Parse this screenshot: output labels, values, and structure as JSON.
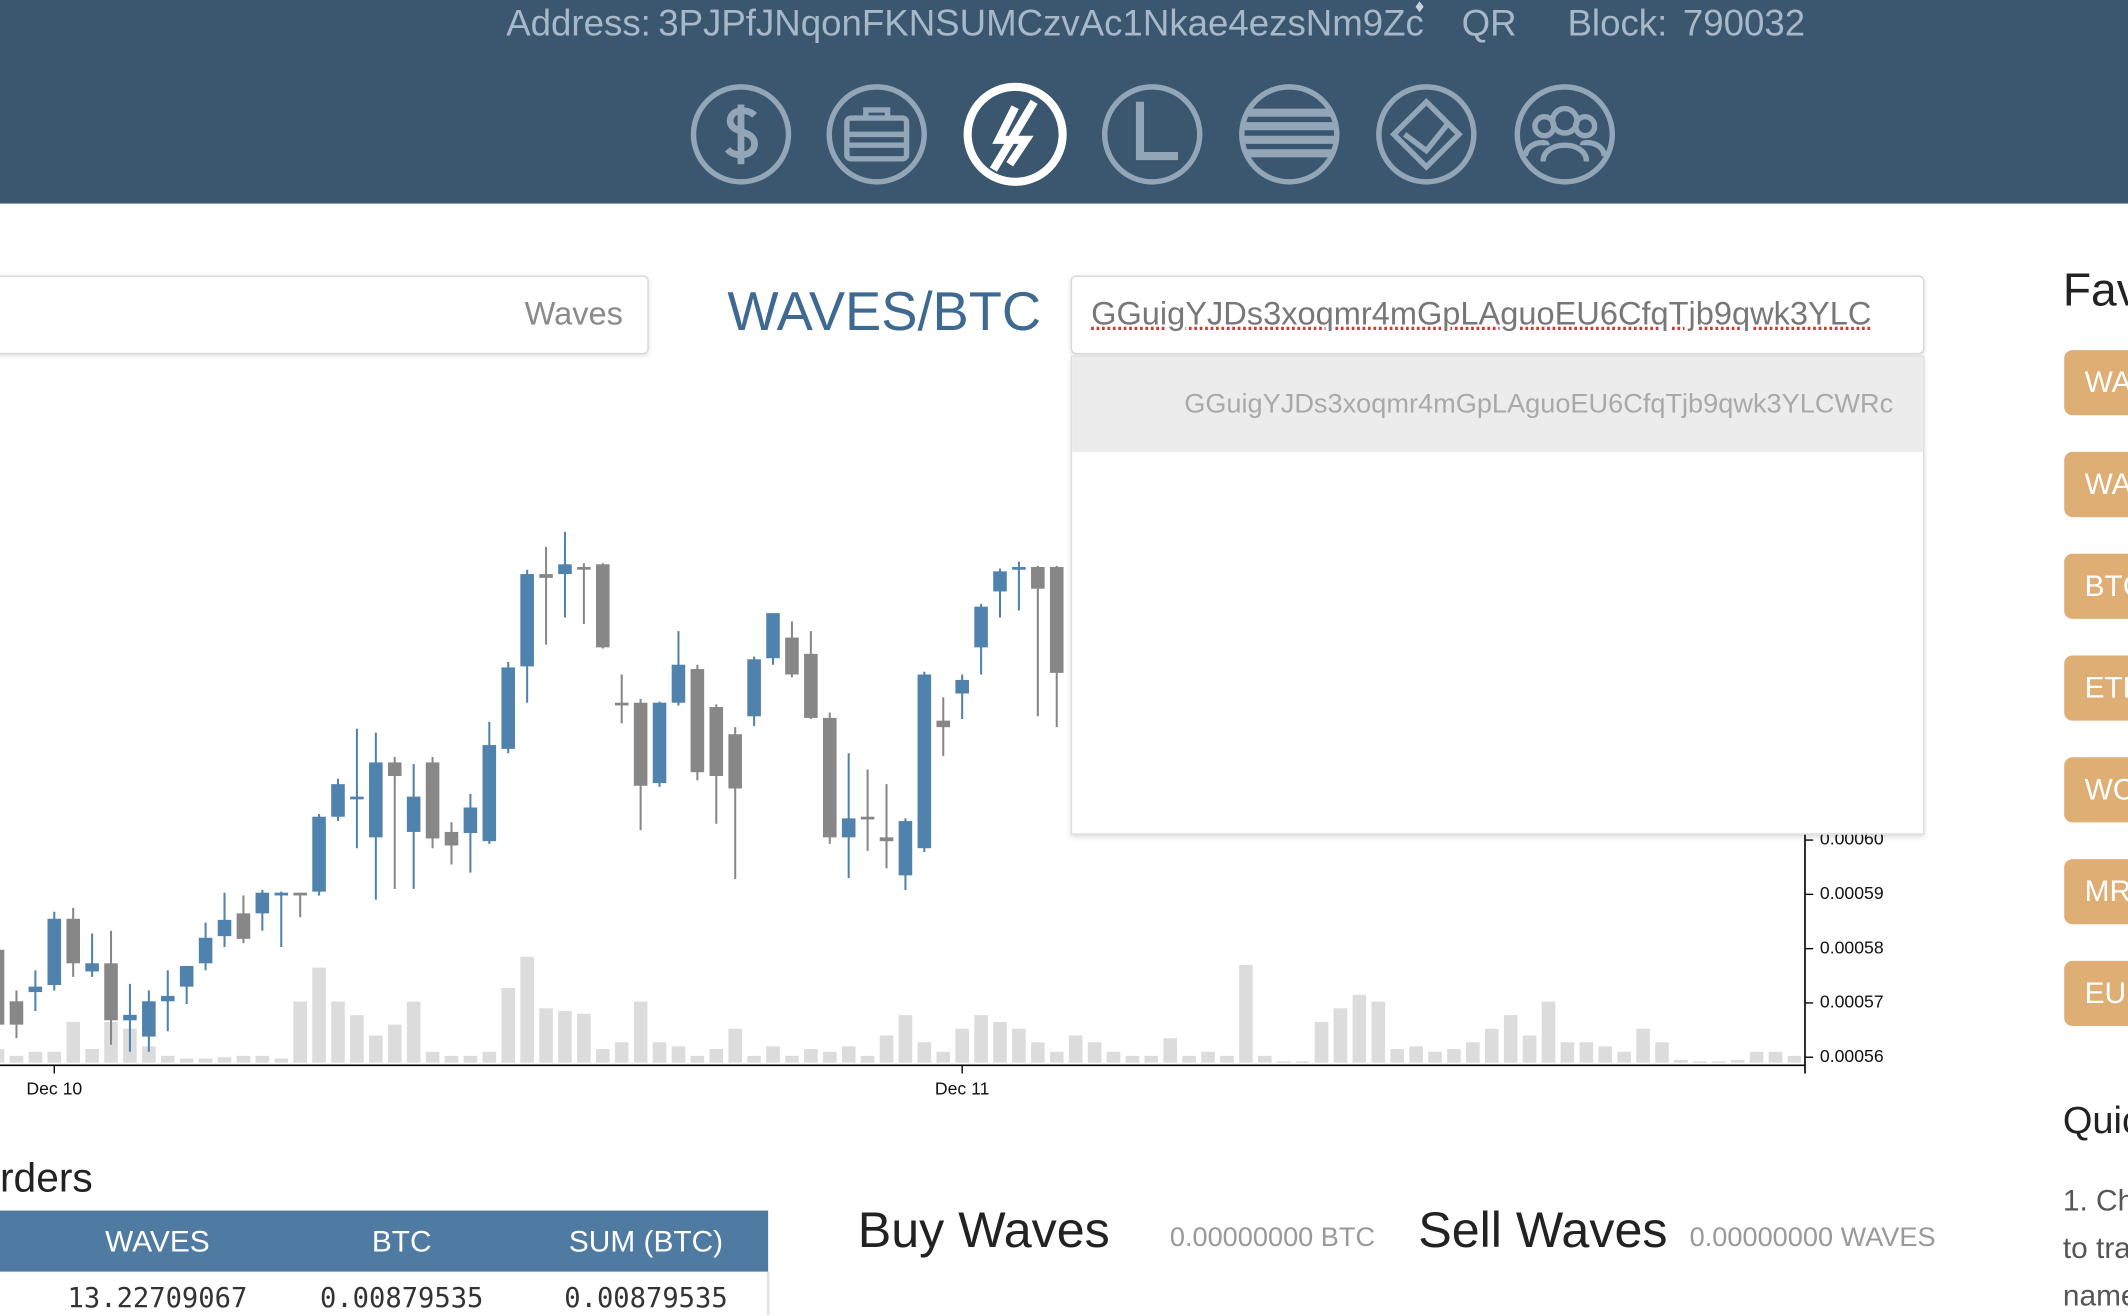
{
  "header": {
    "address_label": "Address:",
    "address": "3PJPfJNqonFKNSUMCzvAc1Nkae4ezsNm9Zc",
    "qr": "QR",
    "block_label": "Block:",
    "block": "790032"
  },
  "pair": {
    "amount_asset": "Waves",
    "title": "WAVES/BTC",
    "price_asset_input": "GGuigYJDs3xoqmr4mGpLAguoEU6CfqTjb9qwk3YLC",
    "suggestion": "GGuigYJDs3xoqmr4mGpLAguoEU6CfqTjb9qwk3YLCWRc"
  },
  "chart_data": {
    "type": "candlestick",
    "xlim": [
      -1.435,
      46.28
    ],
    "xticks": [
      {
        "value": 0,
        "label": "Dec 10"
      },
      {
        "value": 24,
        "label": "Dec 11"
      }
    ],
    "ylim": [
      0.0005585,
      0.000685
    ],
    "yticks": [
      0.00056,
      0.00057,
      0.00058,
      0.00059,
      {
        "value": 0.0006,
        "label": "0.00060"
      }
    ],
    "up_color": "#4f82ad",
    "down_color": "#878787",
    "candles": {
      "x": [
        -1.5,
        -1,
        -0.5,
        0,
        0.5,
        1,
        1.5,
        2,
        2.5,
        3,
        3.5,
        4,
        4.5,
        5,
        5.5,
        6,
        6.5,
        7,
        7.5,
        8,
        8.5,
        9,
        9.5,
        10,
        10.5,
        11,
        11.5,
        12,
        12.5,
        13,
        13.5,
        14,
        14.5,
        15,
        15.5,
        16,
        16.5,
        17,
        17.5,
        18,
        18.5,
        19,
        19.5,
        20,
        20.5,
        21,
        21.5,
        22,
        22.5,
        23,
        23.5,
        24,
        24.5,
        25,
        25.5,
        26,
        26.5
      ],
      "open": [
        0.0005798,
        0.0005703,
        0.000572,
        0.0005733,
        0.0005855,
        0.0005758,
        0.0005773,
        0.0005668,
        0.0005638,
        0.0005703,
        0.000573,
        0.0005773,
        0.0005823,
        0.0005865,
        0.0005865,
        0.0005898,
        0.0005903,
        0.0005905,
        0.0006043,
        0.0006075,
        0.0006005,
        0.0006143,
        0.0006015,
        0.0006143,
        0.0006015,
        0.0006013,
        0.0005998,
        0.0006168,
        0.000632,
        0.000649,
        0.000649,
        0.0006503,
        0.0006508,
        0.0006253,
        0.0006253,
        0.0006105,
        0.0006253,
        0.0006315,
        0.0006245,
        0.0006195,
        0.0006228,
        0.0006335,
        0.0006373,
        0.0006343,
        0.0006225,
        0.0006005,
        0.0006043,
        0.0006005,
        0.0005935,
        0.0005985,
        0.000622,
        0.000627,
        0.0006355,
        0.0006458,
        0.0006498,
        0.0006503,
        0.0006503
      ],
      "high": [
        0.0005798,
        0.0005723,
        0.000576,
        0.0005868,
        0.0005875,
        0.0005828,
        0.0005833,
        0.0005735,
        0.0005723,
        0.000576,
        0.0005768,
        0.0005848,
        0.0005903,
        0.0005898,
        0.0005908,
        0.0005905,
        0.0005903,
        0.0006048,
        0.0006113,
        0.0006205,
        0.0006198,
        0.0006153,
        0.000614,
        0.0006153,
        0.0006033,
        0.0006085,
        0.0006218,
        0.0006328,
        0.0006498,
        0.000654,
        0.0006568,
        0.000651,
        0.000651,
        0.0006305,
        0.000626,
        0.0006255,
        0.0006385,
        0.0006323,
        0.000625,
        0.0006208,
        0.0006338,
        0.0006418,
        0.0006403,
        0.0006385,
        0.0006235,
        0.000616,
        0.000613,
        0.0006103,
        0.000604,
        0.000631,
        0.0006263,
        0.0006305,
        0.0006435,
        0.00065,
        0.0006513,
        0.0006505,
        0.0006505
      ],
      "low": [
        0.0005623,
        0.0005635,
        0.0005685,
        0.0005723,
        0.0005748,
        0.0005748,
        0.0005623,
        0.000561,
        0.000561,
        0.0005648,
        0.0005698,
        0.000576,
        0.0005803,
        0.000581,
        0.0005833,
        0.0005803,
        0.0005858,
        0.0005898,
        0.0006035,
        0.0005985,
        0.000589,
        0.000591,
        0.000591,
        0.0005985,
        0.0005955,
        0.000594,
        0.0005993,
        0.000616,
        0.0006253,
        0.000636,
        0.000641,
        0.0006398,
        0.0006353,
        0.0006215,
        0.0006018,
        0.0006098,
        0.0006248,
        0.000611,
        0.000603,
        0.0005928,
        0.000621,
        0.0006323,
        0.00063,
        0.0006223,
        0.0005993,
        0.000593,
        0.000598,
        0.0005948,
        0.0005908,
        0.0005978,
        0.0006155,
        0.0006223,
        0.0006305,
        0.000641,
        0.0006423,
        0.0006228,
        0.0006208
      ],
      "close": [
        0.000566,
        0.000566,
        0.000573,
        0.0005855,
        0.0005773,
        0.0005773,
        0.0005668,
        0.0005678,
        0.0005703,
        0.0005713,
        0.0005768,
        0.000582,
        0.0005853,
        0.0005818,
        0.0005903,
        0.0005903,
        0.0005898,
        0.0006043,
        0.0006103,
        0.000608,
        0.0006143,
        0.0006118,
        0.000608,
        0.0006003,
        0.000599,
        0.000606,
        0.0006175,
        0.0006318,
        0.000649,
        0.0006483,
        0.0006508,
        0.0006498,
        0.0006355,
        0.0006248,
        0.00061,
        0.0006253,
        0.0006323,
        0.0006125,
        0.0006118,
        0.0006095,
        0.0006333,
        0.0006418,
        0.0006305,
        0.0006225,
        0.0006005,
        0.000604,
        0.0006038,
        0.0005998,
        0.0006035,
        0.0006305,
        0.0006208,
        0.0006295,
        0.000643,
        0.0006495,
        0.0006503,
        0.0006463,
        0.0006308
      ]
    },
    "volume": {
      "color": "#dcdcdc",
      "vlim": [
        0,
        100
      ],
      "x": [
        -1.5,
        -1,
        -0.5,
        0,
        0.5,
        1,
        1.5,
        2,
        2.5,
        3,
        3.5,
        4,
        4.5,
        5,
        5.5,
        6,
        6.5,
        7,
        7.5,
        8,
        8.5,
        9,
        9.5,
        10,
        10.5,
        11,
        11.5,
        12,
        12.5,
        13,
        13.5,
        14,
        14.5,
        15,
        15.5,
        16,
        16.5,
        17,
        17.5,
        18,
        18.5,
        19,
        19.5,
        20,
        20.5,
        21,
        21.5,
        22,
        22.5,
        23,
        23.5,
        24,
        24.5,
        25,
        25.5,
        26,
        26.5,
        27,
        27.5,
        28,
        28.5,
        29,
        29.5,
        30,
        30.5,
        31,
        31.5,
        32,
        32.5,
        33,
        33.5,
        34,
        34.5,
        35,
        35.5,
        36,
        36.5,
        37,
        37.5,
        38,
        38.5,
        39,
        39.5,
        40,
        40.5,
        41,
        41.5,
        42,
        42.5,
        43,
        43.5,
        44,
        44.5,
        45,
        45.5,
        46
      ],
      "values": [
        10,
        5,
        8,
        8,
        30,
        10,
        30,
        25,
        12,
        5,
        3,
        3,
        4,
        5,
        5,
        3,
        45,
        70,
        45,
        35,
        20,
        28,
        45,
        8,
        5,
        5,
        8,
        55,
        78,
        40,
        38,
        36,
        10,
        15,
        45,
        15,
        12,
        5,
        10,
        25,
        5,
        12,
        5,
        10,
        8,
        12,
        5,
        20,
        35,
        15,
        8,
        25,
        35,
        30,
        25,
        15,
        8,
        20,
        15,
        8,
        5,
        5,
        18,
        5,
        8,
        5,
        72,
        5,
        1,
        1,
        30,
        40,
        50,
        45,
        10,
        12,
        8,
        10,
        15,
        25,
        35,
        20,
        45,
        15,
        15,
        12,
        8,
        25,
        15,
        2,
        1,
        1,
        2,
        8,
        8,
        5
      ]
    }
  },
  "favorites": {
    "title": "Fav",
    "items": [
      "WA",
      "WA",
      "BTC",
      "ETH",
      "WC",
      "MR",
      "EUR"
    ]
  },
  "quick": {
    "title": "Quic",
    "lines": [
      "1. Ch",
      "to tra",
      "name"
    ]
  },
  "orders": {
    "title": "rders",
    "columns": [
      "WAVES",
      "BTC",
      "SUM (BTC)"
    ],
    "rows": [
      [
        "13.22709067",
        "0.00879535",
        "0.00879535"
      ]
    ]
  },
  "trade": {
    "buy_title": "Buy Waves",
    "buy_balance": "0.00000000 BTC",
    "sell_title": "Sell Waves",
    "sell_balance": "0.00000000 WAVES"
  }
}
